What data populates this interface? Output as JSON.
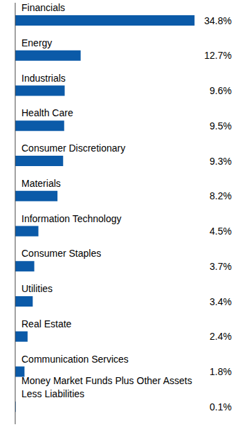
{
  "chart_data": {
    "type": "bar",
    "orientation": "horizontal",
    "categories": [
      "Financials",
      "Energy",
      "Industrials",
      "Health Care",
      "Consumer Discretionary",
      "Materials",
      "Information Technology",
      "Consumer Staples",
      "Utilities",
      "Real Estate",
      "Communication Services",
      "Money Market Funds Plus Other Assets Less Liabilities"
    ],
    "values": [
      34.8,
      12.7,
      9.6,
      9.5,
      9.3,
      8.2,
      4.5,
      3.7,
      3.4,
      2.4,
      1.8,
      0.1
    ],
    "value_labels": [
      "34.8%",
      "12.7%",
      "9.6%",
      "9.5%",
      "9.3%",
      "8.2%",
      "4.5%",
      "3.7%",
      "3.4%",
      "2.4%",
      "1.8%",
      "0.1%"
    ],
    "color": "#0b5aa8",
    "xlim": [
      0,
      40
    ],
    "tick_labels": false,
    "data_labels": true
  }
}
